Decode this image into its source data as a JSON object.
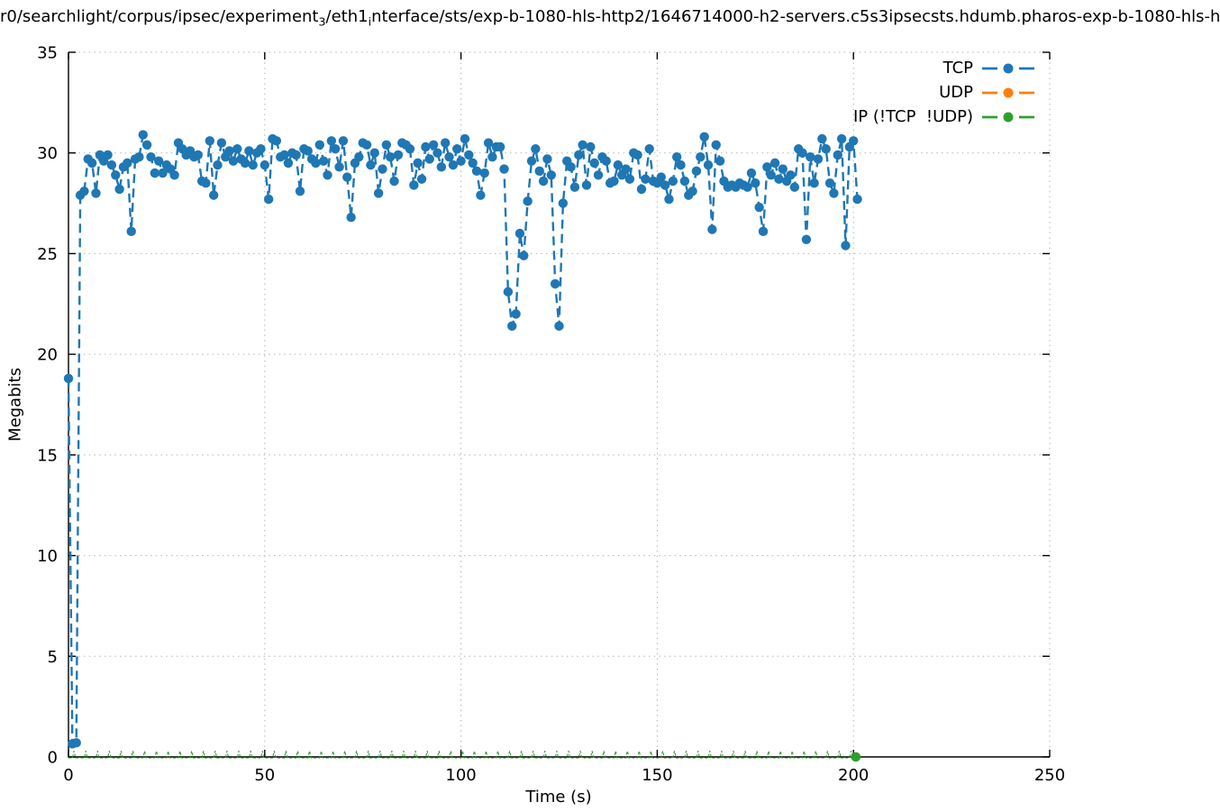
{
  "title": {
    "part1": "r0/searchlight/corpus/ipsec/experiment",
    "sub1": "3",
    "part2": "/eth1",
    "sub2": "i",
    "part3": "nterface/sts/exp-b-1080-hls-http2/1646714000-h2-servers.c5s3ipsecsts.hdumb.pharos-exp-b-1080-hls-h"
  },
  "legend": {
    "entries": [
      {
        "label": "TCP"
      },
      {
        "label": "UDP"
      },
      {
        "label": "IP (!TCP  !UDP)"
      }
    ]
  },
  "colors": {
    "tcp": "#1f77b4",
    "udp": "#ff7f0e",
    "ip": "#2ca02c",
    "grid": "#b4b4b4",
    "axis": "#000000",
    "background": "#ffffff"
  },
  "chart_data": {
    "type": "line",
    "title": "r0/searchlight/corpus/ipsec/experiment₃/eth1ᵢnterface/sts/exp-b-1080-hls-http2/1646714000-h2-servers.c5s3ipsecsts.hdumb.pharos-exp-b-1080-hls-h",
    "xlabel": "Time (s)",
    "ylabel": "Megabits",
    "xlim": [
      0,
      250
    ],
    "ylim": [
      0,
      35
    ],
    "xticks": [
      0,
      50,
      100,
      150,
      200,
      250
    ],
    "yticks": [
      0,
      5,
      10,
      15,
      20,
      25,
      30,
      35
    ],
    "grid": "dotted, at major ticks",
    "legend_position": "top-right-inside",
    "marker_style": "filled-circle, dashed line",
    "series": [
      {
        "name": "TCP",
        "color": "#1f77b4",
        "style": "dashed-linespoints",
        "points": [
          [
            0,
            18.8
          ],
          [
            1,
            0.65
          ],
          [
            2,
            0.7
          ],
          [
            3,
            27.9
          ],
          [
            4,
            28.1
          ],
          [
            5,
            29.7
          ],
          [
            6,
            29.5
          ],
          [
            7,
            28.0
          ],
          [
            8,
            29.9
          ],
          [
            9,
            29.6
          ],
          [
            10,
            29.9
          ],
          [
            11,
            29.4
          ],
          [
            12,
            28.9
          ],
          [
            13,
            28.2
          ],
          [
            14,
            29.3
          ],
          [
            15,
            29.5
          ],
          [
            16,
            26.1
          ],
          [
            17,
            29.7
          ],
          [
            18,
            29.8
          ],
          [
            19,
            30.9
          ],
          [
            20,
            30.4
          ],
          [
            21,
            29.8
          ],
          [
            22,
            29.0
          ],
          [
            23,
            29.6
          ],
          [
            24,
            29.0
          ],
          [
            25,
            29.4
          ],
          [
            26,
            29.2
          ],
          [
            27,
            28.9
          ],
          [
            28,
            30.5
          ],
          [
            29,
            30.2
          ],
          [
            30,
            29.9
          ],
          [
            31,
            30.1
          ],
          [
            32,
            29.8
          ],
          [
            33,
            29.9
          ],
          [
            34,
            28.6
          ],
          [
            35,
            28.5
          ],
          [
            36,
            30.6
          ],
          [
            37,
            27.9
          ],
          [
            38,
            29.4
          ],
          [
            39,
            30.5
          ],
          [
            40,
            29.8
          ],
          [
            41,
            30.1
          ],
          [
            42,
            29.6
          ],
          [
            43,
            30.2
          ],
          [
            44,
            29.7
          ],
          [
            45,
            29.5
          ],
          [
            46,
            30.1
          ],
          [
            47,
            29.4
          ],
          [
            48,
            30.0
          ],
          [
            49,
            30.2
          ],
          [
            50,
            29.4
          ],
          [
            51,
            27.7
          ],
          [
            52,
            30.7
          ],
          [
            53,
            30.6
          ],
          [
            54,
            29.8
          ],
          [
            55,
            29.9
          ],
          [
            56,
            29.5
          ],
          [
            57,
            30.0
          ],
          [
            58,
            29.9
          ],
          [
            59,
            28.1
          ],
          [
            60,
            30.2
          ],
          [
            61,
            30.1
          ],
          [
            62,
            29.7
          ],
          [
            63,
            29.5
          ],
          [
            64,
            30.4
          ],
          [
            65,
            29.6
          ],
          [
            66,
            28.9
          ],
          [
            67,
            30.6
          ],
          [
            68,
            30.2
          ],
          [
            69,
            29.3
          ],
          [
            70,
            30.6
          ],
          [
            71,
            28.8
          ],
          [
            72,
            26.8
          ],
          [
            73,
            29.5
          ],
          [
            74,
            29.8
          ],
          [
            75,
            30.5
          ],
          [
            76,
            30.4
          ],
          [
            77,
            29.4
          ],
          [
            78,
            30.0
          ],
          [
            79,
            28.0
          ],
          [
            80,
            29.2
          ],
          [
            81,
            30.4
          ],
          [
            82,
            29.8
          ],
          [
            83,
            28.6
          ],
          [
            84,
            29.9
          ],
          [
            85,
            30.5
          ],
          [
            86,
            30.4
          ],
          [
            87,
            30.2
          ],
          [
            88,
            28.4
          ],
          [
            89,
            29.5
          ],
          [
            90,
            28.7
          ],
          [
            91,
            30.3
          ],
          [
            92,
            29.7
          ],
          [
            93,
            30.4
          ],
          [
            94,
            30.0
          ],
          [
            95,
            29.3
          ],
          [
            96,
            30.5
          ],
          [
            97,
            29.8
          ],
          [
            98,
            29.4
          ],
          [
            99,
            30.2
          ],
          [
            100,
            29.6
          ],
          [
            101,
            30.7
          ],
          [
            102,
            29.9
          ],
          [
            103,
            29.5
          ],
          [
            104,
            29.1
          ],
          [
            105,
            27.9
          ],
          [
            106,
            29.0
          ],
          [
            107,
            30.5
          ],
          [
            108,
            29.8
          ],
          [
            109,
            30.3
          ],
          [
            110,
            30.3
          ],
          [
            111,
            29.2
          ],
          [
            112,
            23.1
          ],
          [
            113,
            21.4
          ],
          [
            114,
            22.0
          ],
          [
            115,
            26.0
          ],
          [
            116,
            24.9
          ],
          [
            117,
            27.6
          ],
          [
            118,
            29.6
          ],
          [
            119,
            30.2
          ],
          [
            120,
            29.1
          ],
          [
            121,
            28.6
          ],
          [
            122,
            29.7
          ],
          [
            123,
            28.9
          ],
          [
            124,
            23.5
          ],
          [
            125,
            21.4
          ],
          [
            126,
            27.5
          ],
          [
            127,
            29.6
          ],
          [
            128,
            29.3
          ],
          [
            129,
            28.3
          ],
          [
            130,
            29.9
          ],
          [
            131,
            30.4
          ],
          [
            132,
            28.4
          ],
          [
            133,
            30.3
          ],
          [
            134,
            29.5
          ],
          [
            135,
            28.9
          ],
          [
            136,
            29.8
          ],
          [
            137,
            29.6
          ],
          [
            138,
            28.5
          ],
          [
            139,
            28.6
          ],
          [
            140,
            29.4
          ],
          [
            141,
            28.9
          ],
          [
            142,
            29.2
          ],
          [
            143,
            28.7
          ],
          [
            144,
            30.0
          ],
          [
            145,
            29.9
          ],
          [
            146,
            28.2
          ],
          [
            147,
            28.7
          ],
          [
            148,
            30.2
          ],
          [
            149,
            28.6
          ],
          [
            150,
            28.5
          ],
          [
            151,
            28.8
          ],
          [
            152,
            28.4
          ],
          [
            153,
            27.7
          ],
          [
            154,
            28.6
          ],
          [
            155,
            29.8
          ],
          [
            156,
            29.4
          ],
          [
            157,
            28.6
          ],
          [
            158,
            27.9
          ],
          [
            159,
            28.1
          ],
          [
            160,
            29.1
          ],
          [
            161,
            29.8
          ],
          [
            162,
            30.8
          ],
          [
            163,
            29.4
          ],
          [
            164,
            26.2
          ],
          [
            165,
            30.4
          ],
          [
            166,
            29.6
          ],
          [
            167,
            28.6
          ],
          [
            168,
            28.3
          ],
          [
            169,
            28.4
          ],
          [
            170,
            28.3
          ],
          [
            171,
            28.5
          ],
          [
            172,
            28.4
          ],
          [
            173,
            28.3
          ],
          [
            174,
            29.0
          ],
          [
            175,
            28.5
          ],
          [
            176,
            27.3
          ],
          [
            177,
            26.1
          ],
          [
            178,
            29.3
          ],
          [
            179,
            28.9
          ],
          [
            180,
            29.5
          ],
          [
            181,
            28.7
          ],
          [
            182,
            29.2
          ],
          [
            183,
            28.6
          ],
          [
            184,
            28.9
          ],
          [
            185,
            28.3
          ],
          [
            186,
            30.2
          ],
          [
            187,
            30.0
          ],
          [
            188,
            25.7
          ],
          [
            189,
            29.8
          ],
          [
            190,
            28.5
          ],
          [
            191,
            29.7
          ],
          [
            192,
            30.7
          ],
          [
            193,
            30.2
          ],
          [
            194,
            28.5
          ],
          [
            195,
            28.0
          ],
          [
            196,
            29.9
          ],
          [
            197,
            30.7
          ],
          [
            198,
            25.4
          ],
          [
            199,
            30.3
          ],
          [
            200,
            30.6
          ],
          [
            201,
            27.7
          ]
        ]
      },
      {
        "name": "UDP",
        "color": "#ff7f0e",
        "style": "dashed-linespoints",
        "points": []
      },
      {
        "name": "IP (!TCP  !UDP)",
        "color": "#2ca02c",
        "style": "dashed-line-near-zero-with-blips",
        "x_range": [
          0,
          201
        ],
        "base_value": 0.0,
        "blip_value": 0.3,
        "blip_period_s": 3,
        "end_marker": [
          200.6,
          0.0
        ]
      }
    ]
  }
}
